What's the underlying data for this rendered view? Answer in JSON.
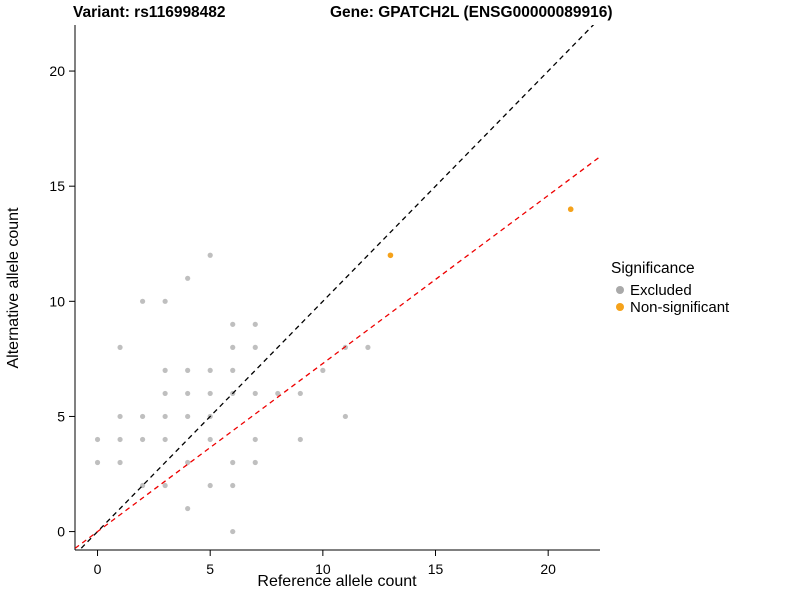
{
  "chart_data": {
    "type": "scatter",
    "title_left": "Variant: rs116998482",
    "title_right": "Gene: GPATCH2L (ENSG00000089916)",
    "xlabel": "Reference allele count",
    "ylabel": "Alternative allele count",
    "xlim": [
      -1,
      22.3
    ],
    "ylim": [
      -0.8,
      22
    ],
    "xticks": [
      0,
      5,
      10,
      15,
      20
    ],
    "yticks": [
      0,
      5,
      10,
      15,
      20
    ],
    "grid": false,
    "legend_position": "right",
    "series": [
      {
        "name": "Excluded",
        "color": "#a9a9a9",
        "opacity": 0.75,
        "radius": 2.6,
        "points": [
          [
            0,
            3
          ],
          [
            0,
            4
          ],
          [
            1,
            3
          ],
          [
            1,
            4
          ],
          [
            1,
            5
          ],
          [
            1,
            8
          ],
          [
            2,
            2
          ],
          [
            2,
            4
          ],
          [
            2,
            5
          ],
          [
            2,
            10
          ],
          [
            3,
            2
          ],
          [
            3,
            4
          ],
          [
            3,
            5
          ],
          [
            3,
            6
          ],
          [
            3,
            7
          ],
          [
            3,
            10
          ],
          [
            4,
            1
          ],
          [
            4,
            3
          ],
          [
            4,
            5
          ],
          [
            4,
            6
          ],
          [
            4,
            7
          ],
          [
            4,
            11
          ],
          [
            5,
            2
          ],
          [
            5,
            4
          ],
          [
            5,
            5
          ],
          [
            5,
            6
          ],
          [
            5,
            7
          ],
          [
            5,
            12
          ],
          [
            6,
            0
          ],
          [
            6,
            2
          ],
          [
            6,
            3
          ],
          [
            6,
            6
          ],
          [
            6,
            7
          ],
          [
            6,
            8
          ],
          [
            6,
            9
          ],
          [
            7,
            3
          ],
          [
            7,
            4
          ],
          [
            7,
            6
          ],
          [
            7,
            8
          ],
          [
            7,
            9
          ],
          [
            8,
            6
          ],
          [
            9,
            4
          ],
          [
            9,
            6
          ],
          [
            10,
            7
          ],
          [
            11,
            5
          ],
          [
            11,
            8
          ],
          [
            12,
            8
          ]
        ]
      },
      {
        "name": "Non-significant",
        "color": "#f5a21b",
        "opacity": 1,
        "radius": 2.8,
        "points": [
          [
            13,
            12
          ],
          [
            21,
            14
          ]
        ]
      }
    ],
    "lines": [
      {
        "name": "identity-line",
        "color": "#000000",
        "slope": 1,
        "intercept": 0,
        "dash": "5,4"
      },
      {
        "name": "regression-line",
        "color": "#ee0000",
        "slope": 0.73,
        "intercept": 0,
        "dash": "5,4"
      }
    ],
    "legend": {
      "title": "Significance",
      "items": [
        {
          "label": "Excluded",
          "color": "#a9a9a9"
        },
        {
          "label": "Non-significant",
          "color": "#f5a21b"
        }
      ]
    }
  }
}
